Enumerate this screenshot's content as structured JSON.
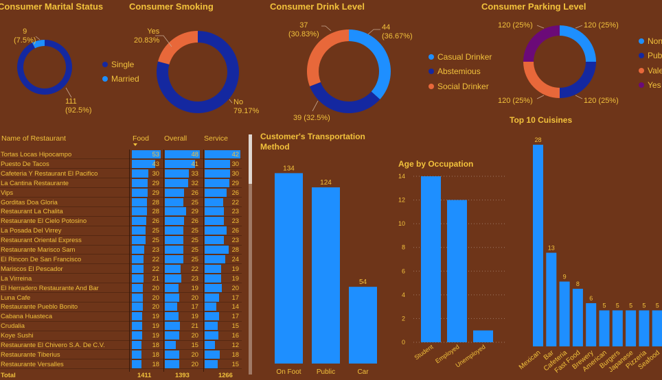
{
  "marital": {
    "title": "Consumer Marital Status",
    "labels": {
      "married": "9\n(7.5%)",
      "single": "111\n(92.5%)"
    },
    "legend": [
      {
        "label": "Single",
        "color": "#1428a0"
      },
      {
        "label": "Married",
        "color": "#1e8fff"
      }
    ],
    "chart_data": {
      "type": "pie",
      "categories": [
        "Single",
        "Married"
      ],
      "values": [
        111,
        9
      ]
    }
  },
  "smoking": {
    "title": "Consumer Smoking",
    "labels": {
      "yes": "Yes\n20.83%",
      "no": "No\n79.17%"
    },
    "chart_data": {
      "type": "pie",
      "categories": [
        "No",
        "Yes"
      ],
      "values": [
        79.17,
        20.83
      ]
    }
  },
  "drink": {
    "title": "Consumer Drink Level",
    "labels": {
      "casual": "44\n(36.67%)",
      "abst": "39 (32.5%)",
      "social": "37\n(30.83%)"
    },
    "legend": [
      {
        "label": "Casual Drinker",
        "color": "#1e8fff"
      },
      {
        "label": "Abstemious",
        "color": "#1428a0"
      },
      {
        "label": "Social Drinker",
        "color": "#e8683a"
      }
    ],
    "chart_data": {
      "type": "pie",
      "categories": [
        "Casual Drinker",
        "Abstemious",
        "Social Drinker"
      ],
      "values": [
        44,
        39,
        37
      ]
    }
  },
  "parking": {
    "title": "Consumer Parking Level",
    "labels": {
      "tr": "120 (25%)",
      "br": "120 (25%)",
      "bl": "120 (25%)",
      "tl": "120 (25%)"
    },
    "legend": [
      {
        "label": "None",
        "color": "#1e8fff"
      },
      {
        "label": "Public",
        "color": "#1428a0"
      },
      {
        "label": "Valet",
        "color": "#e8683a"
      },
      {
        "label": "Yes",
        "color": "#6b0a78"
      }
    ],
    "chart_data": {
      "type": "pie",
      "categories": [
        "None",
        "Public",
        "Valet",
        "Yes"
      ],
      "values": [
        120,
        120,
        120,
        120
      ]
    }
  },
  "table": {
    "headers": {
      "name": "Name of Restaurant",
      "food": "Food",
      "overall": "Overall",
      "service": "Service"
    },
    "rows": [
      {
        "name": "Tortas Locas Hipocampo",
        "food": "53",
        "overall": "48",
        "service": "42"
      },
      {
        "name": "Puesto De Tacos",
        "food": "43",
        "overall": "41",
        "service": "30"
      },
      {
        "name": "Cafeteria Y Restaurant El Pacifico",
        "food": "30",
        "overall": "33",
        "service": "30"
      },
      {
        "name": "La Cantina Restaurante",
        "food": "29",
        "overall": "32",
        "service": "29"
      },
      {
        "name": "Vips",
        "food": "29",
        "overall": "26",
        "service": "26"
      },
      {
        "name": "Gorditas Doa Gloria",
        "food": "28",
        "overall": "25",
        "service": "22"
      },
      {
        "name": "Restaurant La Chalita",
        "food": "28",
        "overall": "29",
        "service": "23"
      },
      {
        "name": "Restaurante El Cielo Potosino",
        "food": "26",
        "overall": "26",
        "service": "23"
      },
      {
        "name": "La Posada Del Virrey",
        "food": "25",
        "overall": "25",
        "service": "26"
      },
      {
        "name": "Restaurant Oriental Express",
        "food": "25",
        "overall": "25",
        "service": "23"
      },
      {
        "name": "Restaurante Marisco Sam",
        "food": "23",
        "overall": "25",
        "service": "28"
      },
      {
        "name": "El Rincon De San Francisco",
        "food": "22",
        "overall": "25",
        "service": "24"
      },
      {
        "name": "Mariscos El Pescador",
        "food": "22",
        "overall": "22",
        "service": "19"
      },
      {
        "name": "La Virreina",
        "food": "21",
        "overall": "23",
        "service": "19"
      },
      {
        "name": "El Herradero Restaurante And Bar",
        "food": "20",
        "overall": "19",
        "service": "20"
      },
      {
        "name": "Luna Cafe",
        "food": "20",
        "overall": "20",
        "service": "17"
      },
      {
        "name": "Restaurante Pueblo Bonito",
        "food": "20",
        "overall": "17",
        "service": "14"
      },
      {
        "name": "Cabana Huasteca",
        "food": "19",
        "overall": "19",
        "service": "17"
      },
      {
        "name": "Crudalia",
        "food": "19",
        "overall": "21",
        "service": "15"
      },
      {
        "name": "Koye Sushi",
        "food": "19",
        "overall": "20",
        "service": "16"
      },
      {
        "name": "Restaurante El Chivero S.A. De C.V.",
        "food": "18",
        "overall": "15",
        "service": "12"
      },
      {
        "name": "Restaurante Tiberius",
        "food": "18",
        "overall": "20",
        "service": "18"
      },
      {
        "name": "Restaurante Versalles",
        "food": "18",
        "overall": "20",
        "service": "15"
      }
    ],
    "total": {
      "name": "Total",
      "food": "1411",
      "overall": "1393",
      "service": "1266"
    }
  },
  "transport": {
    "title": "Customer's Transportation Method",
    "chart_data": {
      "type": "bar",
      "categories": [
        "On Foot",
        "Public",
        "Car"
      ],
      "values": [
        134,
        124,
        54
      ],
      "ylim": [
        0,
        140
      ]
    }
  },
  "age": {
    "title": "Age by Occupation",
    "chart_data": {
      "type": "bar",
      "categories": [
        "Student",
        "Employed",
        "Unemployed"
      ],
      "values": [
        14,
        12,
        1
      ],
      "ylim": [
        0,
        14
      ],
      "yticks": [
        "0",
        "2",
        "4",
        "6",
        "8",
        "10",
        "12",
        "14"
      ]
    }
  },
  "cuisine": {
    "title": "Top 10 Cuisines",
    "chart_data": {
      "type": "bar",
      "categories": [
        "Mexican",
        "Bar",
        "Cafeteria",
        "Fast Food",
        "Brewery",
        "American",
        "Burgers",
        "Japanese",
        "Pizzeria",
        "Seafood"
      ],
      "values": [
        28,
        13,
        9,
        8,
        6,
        5,
        5,
        5,
        5,
        5
      ],
      "ylim": [
        0,
        28
      ]
    }
  }
}
